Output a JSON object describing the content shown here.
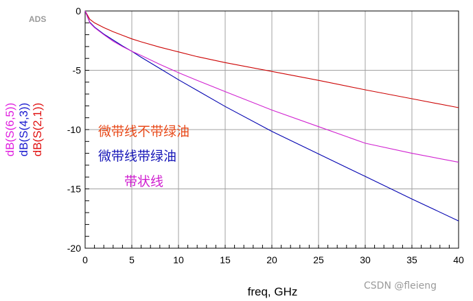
{
  "app_label": "ADS",
  "watermark": "CSDN @fleieng",
  "chart_data": {
    "type": "line",
    "xlabel": "freq, GHz",
    "ylabel_parts": [
      {
        "text": "dB(S(6,5))",
        "color": "#e020e0"
      },
      {
        "text": "dB(S(4,3))",
        "color": "#1a1ad0"
      },
      {
        "text": "dB(S(2,1))",
        "color": "#e01010"
      }
    ],
    "xlim": [
      0,
      40
    ],
    "ylim": [
      -20,
      0
    ],
    "x_ticks": [
      "0",
      "5",
      "10",
      "15",
      "20",
      "25",
      "30",
      "35",
      "40"
    ],
    "y_ticks": [
      "0",
      "-5",
      "-10",
      "-15",
      "-20"
    ],
    "grid": true,
    "x": [
      0,
      0.5,
      1,
      2,
      3,
      4,
      5,
      6,
      8,
      10,
      12,
      15,
      20,
      25,
      30,
      35,
      40
    ],
    "series": [
      {
        "key": "S21",
        "color": "#cc0000",
        "values": [
          0,
          -0.7,
          -1.0,
          -1.4,
          -1.75,
          -2.05,
          -2.35,
          -2.6,
          -3.05,
          -3.45,
          -3.85,
          -4.35,
          -5.1,
          -5.85,
          -6.65,
          -7.4,
          -8.15
        ]
      },
      {
        "key": "S43",
        "color": "#0000b0",
        "values": [
          0,
          -0.95,
          -1.35,
          -1.95,
          -2.45,
          -2.95,
          -3.4,
          -3.9,
          -4.85,
          -5.8,
          -6.7,
          -8.05,
          -10.15,
          -12.05,
          -13.95,
          -15.85,
          -17.7
        ]
      },
      {
        "key": "S65",
        "color": "#d020d0",
        "values": [
          0,
          -1.0,
          -1.4,
          -2.0,
          -2.55,
          -3.0,
          -3.4,
          -3.75,
          -4.5,
          -5.2,
          -5.85,
          -6.8,
          -8.35,
          -9.75,
          -11.15,
          -12.0,
          -12.75
        ]
      }
    ],
    "annotations": [
      {
        "text": "微带线不带绿油",
        "color": "#e84a1a"
      },
      {
        "text": "微带线带绿油",
        "color": "#1818b8"
      },
      {
        "text": "带状线",
        "color": "#d020d0"
      }
    ]
  }
}
